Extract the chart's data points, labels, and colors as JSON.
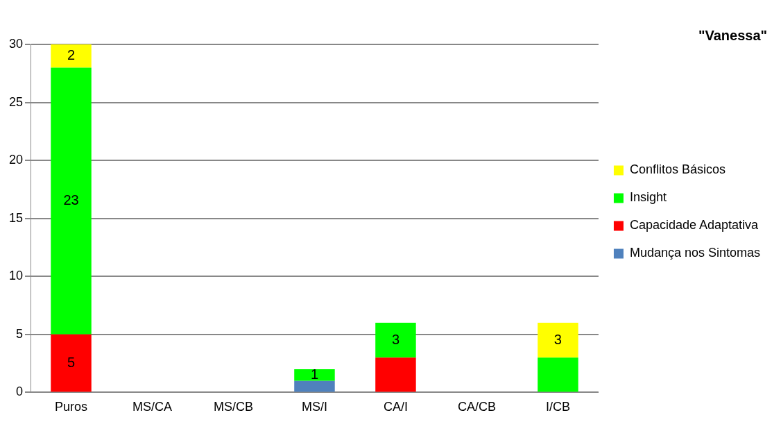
{
  "chart_data": {
    "type": "bar",
    "title": "\"Vanessa\"",
    "stacked": true,
    "categories": [
      "Puros",
      "MS/CA",
      "MS/CB",
      "MS/I",
      "CA/I",
      "CA/CB",
      "I/CB"
    ],
    "series": [
      {
        "name": "Mudança nos Sintomas",
        "color": "#4f81bd",
        "values": [
          0,
          0,
          0,
          1,
          0,
          0,
          0
        ],
        "value_labels": [
          null,
          null,
          null,
          null,
          null,
          null,
          null
        ]
      },
      {
        "name": "Capacidade Adaptativa",
        "color": "#ff0000",
        "values": [
          5,
          0,
          0,
          0,
          3,
          0,
          0
        ],
        "value_labels": [
          "5",
          null,
          null,
          null,
          null,
          null,
          null
        ]
      },
      {
        "name": "Insight",
        "color": "#00ff00",
        "values": [
          23,
          0,
          0,
          1,
          3,
          0,
          3
        ],
        "value_labels": [
          "23",
          null,
          null,
          "1",
          "3",
          null,
          null
        ]
      },
      {
        "name": "Conflitos Básicos",
        "color": "#ffff00",
        "values": [
          2,
          0,
          0,
          0,
          0,
          0,
          3
        ],
        "value_labels": [
          "2",
          null,
          null,
          null,
          null,
          null,
          "3"
        ]
      }
    ],
    "ylim": [
      0,
      30
    ],
    "yticks": [
      0,
      5,
      10,
      15,
      20,
      25,
      30
    ],
    "grid": "y",
    "legend": "right"
  }
}
